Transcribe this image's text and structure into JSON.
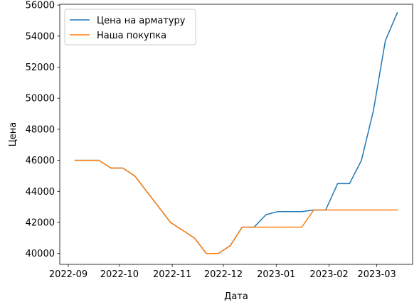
{
  "chart_data": {
    "type": "line",
    "title": "",
    "xlabel": "Дата",
    "ylabel": "Цена",
    "x_tick_labels": [
      "2022-09",
      "2022-10",
      "2022-11",
      "2022-12",
      "2023-01",
      "2023-02",
      "2023-03"
    ],
    "x_tick_dates": [
      "2022-09-01",
      "2022-10-01",
      "2022-11-01",
      "2022-12-01",
      "2023-01-01",
      "2023-02-01",
      "2023-03-01"
    ],
    "y_ticks": [
      40000,
      42000,
      44000,
      46000,
      48000,
      50000,
      52000,
      54000,
      56000
    ],
    "xlim": [
      "2022-08-27",
      "2023-03-22"
    ],
    "ylim": [
      39300,
      56050
    ],
    "grid": false,
    "legend_position": "top-left",
    "x": [
      "2022-09-05",
      "2022-09-12",
      "2022-09-19",
      "2022-09-26",
      "2022-10-03",
      "2022-10-10",
      "2022-10-17",
      "2022-10-24",
      "2022-10-31",
      "2022-11-07",
      "2022-11-14",
      "2022-11-21",
      "2022-11-28",
      "2022-12-05",
      "2022-12-12",
      "2022-12-19",
      "2022-12-26",
      "2023-01-02",
      "2023-01-09",
      "2023-01-16",
      "2023-01-23",
      "2023-01-30",
      "2023-02-06",
      "2023-02-13",
      "2023-02-20",
      "2023-02-27",
      "2023-03-06",
      "2023-03-13"
    ],
    "series": [
      {
        "name": "Цена на арматуру",
        "color": "#1f77b4",
        "values": [
          46000,
          46000,
          46000,
          45500,
          45500,
          45000,
          44000,
          43000,
          42000,
          41500,
          41000,
          40000,
          40000,
          40500,
          41700,
          41700,
          42500,
          42700,
          42700,
          42700,
          42800,
          42800,
          44500,
          44500,
          46000,
          49200,
          53700,
          55500
        ]
      },
      {
        "name": "Наша покупка",
        "color": "#ff7f0e",
        "values": [
          46000,
          46000,
          46000,
          45500,
          45500,
          45000,
          44000,
          43000,
          42000,
          41500,
          41000,
          40000,
          40000,
          40500,
          41700,
          41700,
          41700,
          41700,
          41700,
          41700,
          42800,
          42800,
          42800,
          42800,
          42800,
          42800,
          42800,
          42800
        ]
      }
    ]
  }
}
